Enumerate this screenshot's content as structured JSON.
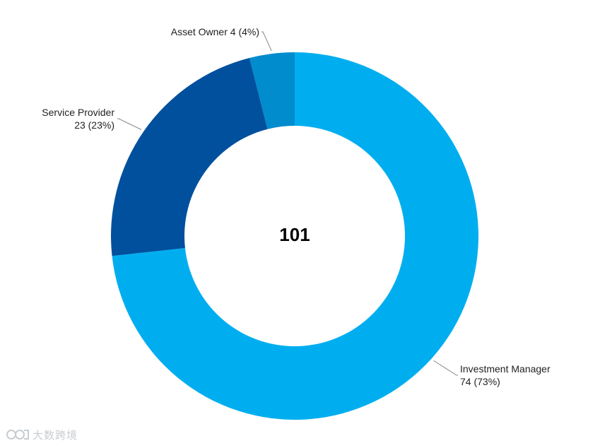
{
  "chart_data": {
    "type": "pie",
    "variant": "donut",
    "total": "101",
    "slices": [
      {
        "name": "Investment Manager",
        "value": 74,
        "percent": "73%",
        "label_lines": [
          "Investment Manager",
          "74 (73%)"
        ],
        "color": "#00AEEF"
      },
      {
        "name": "Service Provider",
        "value": 23,
        "percent": "23%",
        "label_lines": [
          "Service Provider",
          "23 (23%)"
        ],
        "color": "#00509E"
      },
      {
        "name": "Asset Owner",
        "value": 4,
        "percent": "4%",
        "label_lines": [
          "Asset Owner 4 (4%)"
        ],
        "color": "#008CCD"
      }
    ],
    "legend": "none",
    "start_angle_deg": 0,
    "direction": "clockwise"
  },
  "watermark": {
    "icon": "logo-icon",
    "text": "大数跨境"
  }
}
